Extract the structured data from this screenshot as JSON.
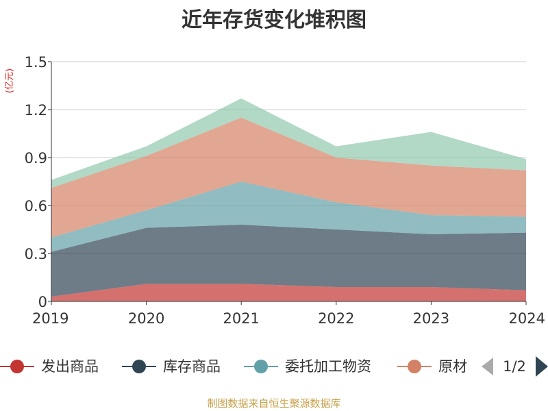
{
  "chart_data": {
    "type": "area",
    "stacked": true,
    "title": "近年存货变化堆积图",
    "ylabel": "(亿元)",
    "xlabel": "",
    "categories": [
      "2019",
      "2020",
      "2021",
      "2022",
      "2023",
      "2024"
    ],
    "ylim": [
      0,
      1.5
    ],
    "yticks": [
      "0",
      "0.3",
      "0.6",
      "0.9",
      "1.2",
      "1.5"
    ],
    "grid": true,
    "legend_position": "bottom",
    "series": [
      {
        "name": "发出商品",
        "color": "#c23531",
        "values": [
          0.03,
          0.11,
          0.11,
          0.09,
          0.09,
          0.07
        ]
      },
      {
        "name": "库存商品",
        "color": "#2f4554",
        "values": [
          0.28,
          0.35,
          0.37,
          0.36,
          0.33,
          0.36
        ]
      },
      {
        "name": "委托加工物资",
        "color": "#61a0a8",
        "values": [
          0.09,
          0.11,
          0.27,
          0.17,
          0.12,
          0.1
        ]
      },
      {
        "name": "原材料",
        "color": "#d48265",
        "values": [
          0.31,
          0.34,
          0.4,
          0.28,
          0.31,
          0.29
        ]
      },
      {
        "name": "",
        "color": "#91c7ae",
        "values": [
          0.05,
          0.06,
          0.12,
          0.07,
          0.21,
          0.07
        ]
      }
    ]
  },
  "legend": {
    "visible_labels": [
      "发出商品",
      "库存商品",
      "委托加工物资",
      "原材"
    ],
    "page_indicator": "1/2",
    "prev_icon": "triangle-left-icon",
    "next_icon": "triangle-right-icon"
  },
  "source_note": "制图数据来自恒生聚源数据库"
}
